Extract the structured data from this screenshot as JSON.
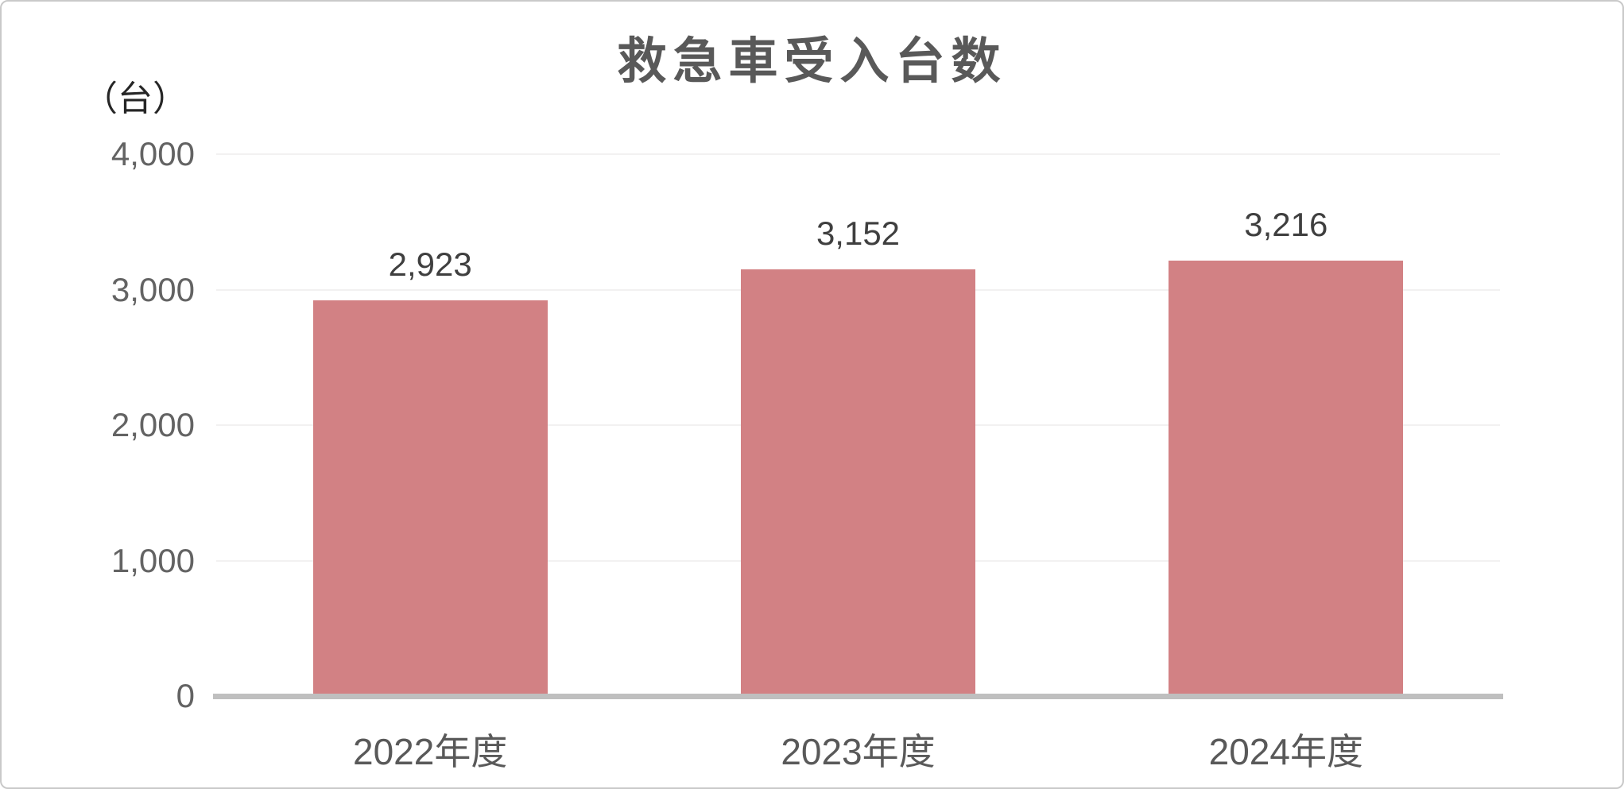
{
  "chart_data": {
    "type": "bar",
    "title": "救急車受入台数",
    "unit_label": "（台）",
    "categories": [
      "2022年度",
      "2023年度",
      "2024年度"
    ],
    "values": [
      2923,
      3152,
      3216
    ],
    "data_labels": [
      "2,923",
      "3,152",
      "3,216"
    ],
    "ylim": [
      0,
      4000
    ],
    "y_ticks": [
      {
        "value": 4000,
        "label": "4,000"
      },
      {
        "value": 3000,
        "label": "3,000"
      },
      {
        "value": 2000,
        "label": "2,000"
      },
      {
        "value": 1000,
        "label": "1,000"
      },
      {
        "value": 0,
        "label": "0"
      }
    ],
    "grid": true,
    "legend": "none",
    "colors": {
      "bar": "#D28184",
      "title": "#595959",
      "tick_label": "#636363",
      "category_label": "#595959",
      "data_label": "#3F3F3F",
      "axis_line": "#BFBFBF",
      "gridline": "#F2F1F1",
      "card_border": "#C9C9C9"
    }
  }
}
